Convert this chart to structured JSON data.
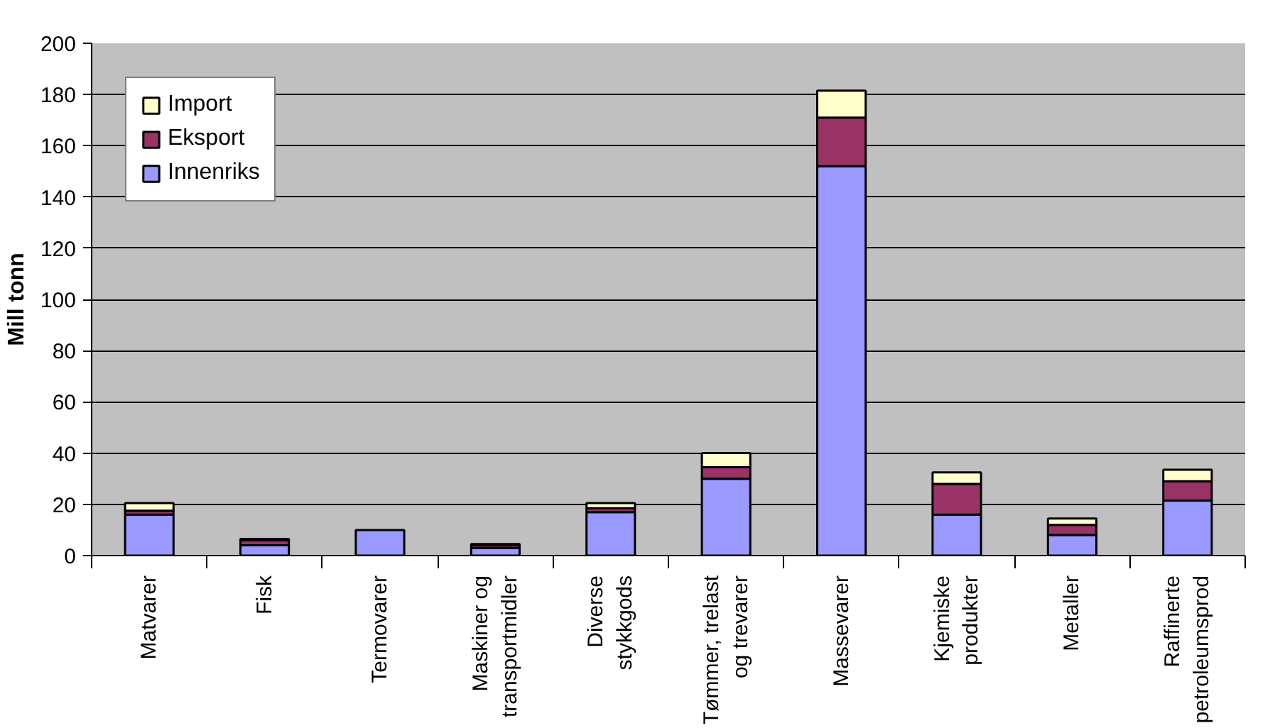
{
  "chart_data": {
    "type": "bar",
    "stacked": true,
    "ylabel": "Mill tonn",
    "categories": [
      "Matvarer",
      "Fisk",
      "Termovarer",
      "Maskiner og transportmidler",
      "Diverse stykkgods",
      "Tømmer, trelast og trevarer",
      "Massevarer",
      "Kjemiske produkter",
      "Metaller",
      "Raffinerte petroleumsprod"
    ],
    "series": [
      {
        "name": "Innenriks",
        "color": "#9999ff",
        "values": [
          16,
          4,
          10,
          3,
          17,
          30,
          152,
          16,
          8,
          21.5
        ]
      },
      {
        "name": "Eksport",
        "color": "#993366",
        "values": [
          1.5,
          2,
          null,
          1,
          1.5,
          4.5,
          19,
          12,
          4,
          7.5
        ]
      },
      {
        "name": "Import",
        "color": "#ffffcc",
        "values": [
          3,
          0.5,
          null,
          0.5,
          2,
          5.5,
          10.5,
          4.5,
          2.5,
          4.5
        ]
      }
    ],
    "ylim": [
      0,
      200
    ],
    "yticks": [
      0,
      20,
      40,
      60,
      80,
      100,
      120,
      140,
      160,
      180,
      200
    ],
    "grid": "y",
    "legend": "top left"
  }
}
